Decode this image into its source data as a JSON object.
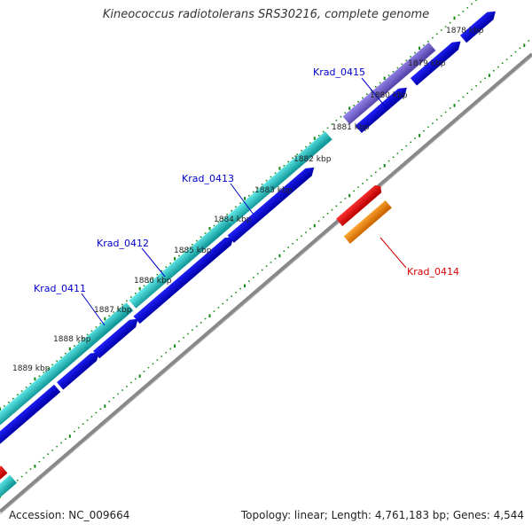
{
  "header": {
    "title": "Kineococcus radiotolerans SRS30216, complete genome"
  },
  "footer": {
    "accession": "Accession: NC_009664",
    "stats": "Topology: linear; Length: 4,761,183 bp; Genes: 4,544"
  },
  "scale": {
    "ticks": [
      {
        "label": "1878 kbp",
        "kbp": 1878
      },
      {
        "label": "1879 kbp",
        "kbp": 1879
      },
      {
        "label": "1880 kbp",
        "kbp": 1880
      },
      {
        "label": "1881 kbp",
        "kbp": 1881
      },
      {
        "label": "1882 kbp",
        "kbp": 1882
      },
      {
        "label": "1883 kbp",
        "kbp": 1883
      },
      {
        "label": "1884 kbp",
        "kbp": 1884
      },
      {
        "label": "1885 kbp",
        "kbp": 1885
      },
      {
        "label": "1886 kbp",
        "kbp": 1886
      },
      {
        "label": "1887 kbp",
        "kbp": 1887
      },
      {
        "label": "1888 kbp",
        "kbp": 1888
      },
      {
        "label": "1889 kbp",
        "kbp": 1889
      }
    ]
  },
  "genes": [
    {
      "label": "Krad_0415",
      "color": "#0000cc"
    },
    {
      "label": "Krad_0413",
      "color": "#0000cc"
    },
    {
      "label": "Krad_0412",
      "color": "#0000cc"
    },
    {
      "label": "Krad_0411",
      "color": "#0000cc"
    },
    {
      "label": "Krad_0414",
      "color": "#dd0000"
    }
  ],
  "colors": {
    "tick": "#118811",
    "backbone": "#888888",
    "cds": "#0000dd",
    "cds_dark": "#000099",
    "gene_cyan": "#22cccc",
    "gene_purple": "#7766cc",
    "gene_red": "#ee0000",
    "gene_orange": "#ff8800"
  }
}
